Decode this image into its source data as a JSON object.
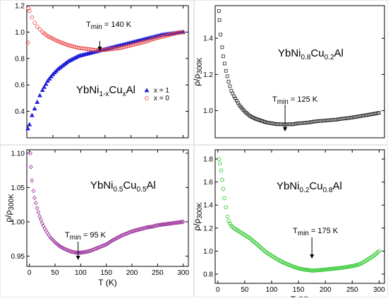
{
  "figure_labels": {
    "y_label": "ρ/ρ",
    "y_label_sub": "300K",
    "x_label": "T (K)"
  },
  "chart_data": [
    {
      "id": "a",
      "type": "scatter",
      "formula": {
        "base1": "YbNi",
        "sub1": "1-x",
        "base2": "Cu",
        "sub2": "x",
        "base3": "Al"
      },
      "tmin": {
        "prefix": "T",
        "sub": "min",
        "text": " = 140 K",
        "value": 140
      },
      "xlim": [
        0,
        310
      ],
      "ylim": [
        0.2,
        1.2
      ],
      "xticks": [
        0,
        50,
        100,
        150,
        200,
        250,
        300
      ],
      "yticks": [
        0.4,
        0.6,
        0.8,
        1.0,
        1.2
      ],
      "ytick_labels": [
        "0.4",
        "0.6",
        "0.8",
        "1.0",
        "1.2"
      ],
      "legend": {
        "position": "right"
      },
      "series": [
        {
          "name": "x = 1",
          "marker": "filled-triangle",
          "color": "#1f1fd6",
          "points": [
            [
              2,
              0.27
            ],
            [
              5,
              0.3
            ],
            [
              10,
              0.37
            ],
            [
              15,
              0.42
            ],
            [
              20,
              0.47
            ],
            [
              25,
              0.52
            ],
            [
              30,
              0.56
            ],
            [
              40,
              0.63
            ],
            [
              50,
              0.68
            ],
            [
              60,
              0.72
            ],
            [
              70,
              0.75
            ],
            [
              80,
              0.78
            ],
            [
              90,
              0.8
            ],
            [
              100,
              0.82
            ],
            [
              110,
              0.83
            ],
            [
              120,
              0.84
            ],
            [
              130,
              0.85
            ],
            [
              140,
              0.86
            ],
            [
              150,
              0.87
            ],
            [
              160,
              0.88
            ],
            [
              170,
              0.89
            ],
            [
              180,
              0.9
            ],
            [
              190,
              0.91
            ],
            [
              200,
              0.92
            ],
            [
              210,
              0.93
            ],
            [
              220,
              0.94
            ],
            [
              230,
              0.95
            ],
            [
              240,
              0.96
            ],
            [
              250,
              0.97
            ],
            [
              260,
              0.98
            ],
            [
              270,
              0.985
            ],
            [
              280,
              0.99
            ],
            [
              290,
              0.995
            ],
            [
              300,
              1.0
            ]
          ]
        },
        {
          "name": "x = 0",
          "marker": "open-circle",
          "color": "#e83a3a",
          "points": [
            [
              2,
              0.92
            ],
            [
              3,
              1.18
            ],
            [
              5,
              1.16
            ],
            [
              10,
              1.11
            ],
            [
              15,
              1.07
            ],
            [
              20,
              1.04
            ],
            [
              25,
              1.02
            ],
            [
              30,
              1.0
            ],
            [
              40,
              0.97
            ],
            [
              50,
              0.95
            ],
            [
              60,
              0.93
            ],
            [
              70,
              0.915
            ],
            [
              80,
              0.9
            ],
            [
              90,
              0.89
            ],
            [
              100,
              0.88
            ],
            [
              110,
              0.875
            ],
            [
              120,
              0.87
            ],
            [
              130,
              0.865
            ],
            [
              140,
              0.865
            ],
            [
              150,
              0.865
            ],
            [
              160,
              0.87
            ],
            [
              170,
              0.875
            ],
            [
              180,
              0.88
            ],
            [
              190,
              0.89
            ],
            [
              200,
              0.9
            ],
            [
              210,
              0.91
            ],
            [
              220,
              0.92
            ],
            [
              230,
              0.93
            ],
            [
              240,
              0.945
            ],
            [
              250,
              0.955
            ],
            [
              260,
              0.965
            ],
            [
              270,
              0.975
            ],
            [
              280,
              0.985
            ],
            [
              290,
              0.995
            ],
            [
              300,
              1.0
            ]
          ]
        }
      ]
    },
    {
      "id": "b",
      "type": "scatter",
      "formula": {
        "base1": "YbNi",
        "sub1": "0.8",
        "base2": "Cu",
        "sub2": "0.2",
        "base3": "Al"
      },
      "tmin": {
        "prefix": "T",
        "sub": "min",
        "text": " = 125 K",
        "value": 125
      },
      "xlim": [
        -5,
        310
      ],
      "ylim": [
        0.85,
        1.58
      ],
      "xticks": [],
      "yticks": [
        1.0,
        1.2,
        1.4
      ],
      "ytick_labels": [
        "1.0",
        "1.2",
        "1.4"
      ],
      "series": [
        {
          "name": "YbNi0.8Cu0.2Al",
          "marker": "open-square",
          "color": "#222222",
          "points": [
            [
              2,
              1.55
            ],
            [
              3,
              1.5
            ],
            [
              5,
              1.42
            ],
            [
              8,
              1.35
            ],
            [
              10,
              1.3
            ],
            [
              15,
              1.22
            ],
            [
              20,
              1.16
            ],
            [
              25,
              1.11
            ],
            [
              30,
              1.08
            ],
            [
              40,
              1.03
            ],
            [
              50,
              0.995
            ],
            [
              60,
              0.97
            ],
            [
              70,
              0.955
            ],
            [
              80,
              0.945
            ],
            [
              90,
              0.935
            ],
            [
              100,
              0.93
            ],
            [
              110,
              0.925
            ],
            [
              120,
              0.925
            ],
            [
              125,
              0.922
            ],
            [
              130,
              0.925
            ],
            [
              140,
              0.925
            ],
            [
              150,
              0.93
            ],
            [
              160,
              0.932
            ],
            [
              170,
              0.935
            ],
            [
              180,
              0.94
            ],
            [
              190,
              0.943
            ],
            [
              200,
              0.945
            ],
            [
              210,
              0.948
            ],
            [
              220,
              0.95
            ],
            [
              230,
              0.955
            ],
            [
              240,
              0.958
            ],
            [
              250,
              0.962
            ],
            [
              260,
              0.967
            ],
            [
              270,
              0.972
            ],
            [
              280,
              0.977
            ],
            [
              290,
              0.982
            ],
            [
              300,
              0.988
            ]
          ]
        }
      ]
    },
    {
      "id": "c",
      "type": "scatter",
      "formula": {
        "base1": "YbNi",
        "sub1": "0.5",
        "base2": "Cu",
        "sub2": "0.5",
        "base3": "Al"
      },
      "tmin": {
        "prefix": "T",
        "sub": "min",
        "text": " = 95 K",
        "value": 95
      },
      "xlim": [
        -5,
        310
      ],
      "ylim": [
        0.935,
        1.105
      ],
      "xticks": [
        0,
        50,
        100,
        150,
        200,
        250,
        300
      ],
      "yticks": [
        0.95,
        1.0,
        1.05,
        1.1
      ],
      "ytick_labels": [
        "0.95",
        "1.00",
        "1.05",
        "1.10"
      ],
      "series": [
        {
          "name": "YbNi0.5Cu0.5Al",
          "marker": "open-diamond",
          "color": "#9b2f9b",
          "points": [
            [
              2,
              1.1
            ],
            [
              3,
              1.08
            ],
            [
              5,
              1.06
            ],
            [
              8,
              1.045
            ],
            [
              10,
              1.035
            ],
            [
              15,
              1.02
            ],
            [
              20,
              1.008
            ],
            [
              25,
              0.998
            ],
            [
              30,
              0.99
            ],
            [
              40,
              0.978
            ],
            [
              50,
              0.97
            ],
            [
              60,
              0.964
            ],
            [
              70,
              0.96
            ],
            [
              80,
              0.957
            ],
            [
              90,
              0.955
            ],
            [
              95,
              0.955
            ],
            [
              100,
              0.955
            ],
            [
              110,
              0.956
            ],
            [
              120,
              0.958
            ],
            [
              130,
              0.961
            ],
            [
              140,
              0.964
            ],
            [
              150,
              0.967
            ],
            [
              160,
              0.972
            ],
            [
              170,
              0.976
            ],
            [
              180,
              0.98
            ],
            [
              190,
              0.983
            ],
            [
              200,
              0.986
            ],
            [
              210,
              0.988
            ],
            [
              220,
              0.99
            ],
            [
              230,
              0.992
            ],
            [
              240,
              0.993
            ],
            [
              250,
              0.995
            ],
            [
              260,
              0.996
            ],
            [
              270,
              0.997
            ],
            [
              280,
              0.998
            ],
            [
              290,
              0.999
            ],
            [
              300,
              1.0
            ]
          ]
        }
      ]
    },
    {
      "id": "d",
      "type": "scatter",
      "formula": {
        "base1": "YbNi",
        "sub1": "0.2",
        "base2": "Cu",
        "sub2": "0.8",
        "base3": "Al"
      },
      "tmin": {
        "prefix": "T",
        "sub": "min",
        "text": " = 175 K",
        "value": 175
      },
      "xlim": [
        -5,
        310
      ],
      "ylim": [
        0.72,
        1.88
      ],
      "xticks": [
        0,
        50,
        100,
        150,
        200,
        250,
        300
      ],
      "yticks": [
        0.8,
        1.0,
        1.2,
        1.4,
        1.6,
        1.8
      ],
      "ytick_labels": [
        "0.8",
        "1.0",
        "1.2",
        "1.4",
        "1.6",
        "1.8"
      ],
      "series": [
        {
          "name": "YbNi0.2Cu0.8Al",
          "marker": "open-circle",
          "color": "#22c422",
          "points": [
            [
              2,
              1.8
            ],
            [
              4,
              1.76
            ],
            [
              6,
              1.7
            ],
            [
              8,
              1.62
            ],
            [
              10,
              1.54
            ],
            [
              12,
              1.46
            ],
            [
              15,
              1.38
            ],
            [
              18,
              1.3
            ],
            [
              20,
              1.26
            ],
            [
              25,
              1.22
            ],
            [
              30,
              1.2
            ],
            [
              40,
              1.17
            ],
            [
              50,
              1.14
            ],
            [
              60,
              1.11
            ],
            [
              70,
              1.07
            ],
            [
              80,
              1.03
            ],
            [
              90,
              0.99
            ],
            [
              100,
              0.96
            ],
            [
              110,
              0.93
            ],
            [
              120,
              0.905
            ],
            [
              130,
              0.885
            ],
            [
              140,
              0.865
            ],
            [
              150,
              0.85
            ],
            [
              160,
              0.84
            ],
            [
              170,
              0.835
            ],
            [
              175,
              0.83
            ],
            [
              180,
              0.832
            ],
            [
              190,
              0.835
            ],
            [
              200,
              0.84
            ],
            [
              210,
              0.845
            ],
            [
              220,
              0.85
            ],
            [
              230,
              0.855
            ],
            [
              240,
              0.862
            ],
            [
              250,
              0.87
            ],
            [
              260,
              0.88
            ],
            [
              270,
              0.9
            ],
            [
              280,
              0.93
            ],
            [
              290,
              0.96
            ],
            [
              300,
              1.0
            ]
          ]
        }
      ]
    }
  ]
}
